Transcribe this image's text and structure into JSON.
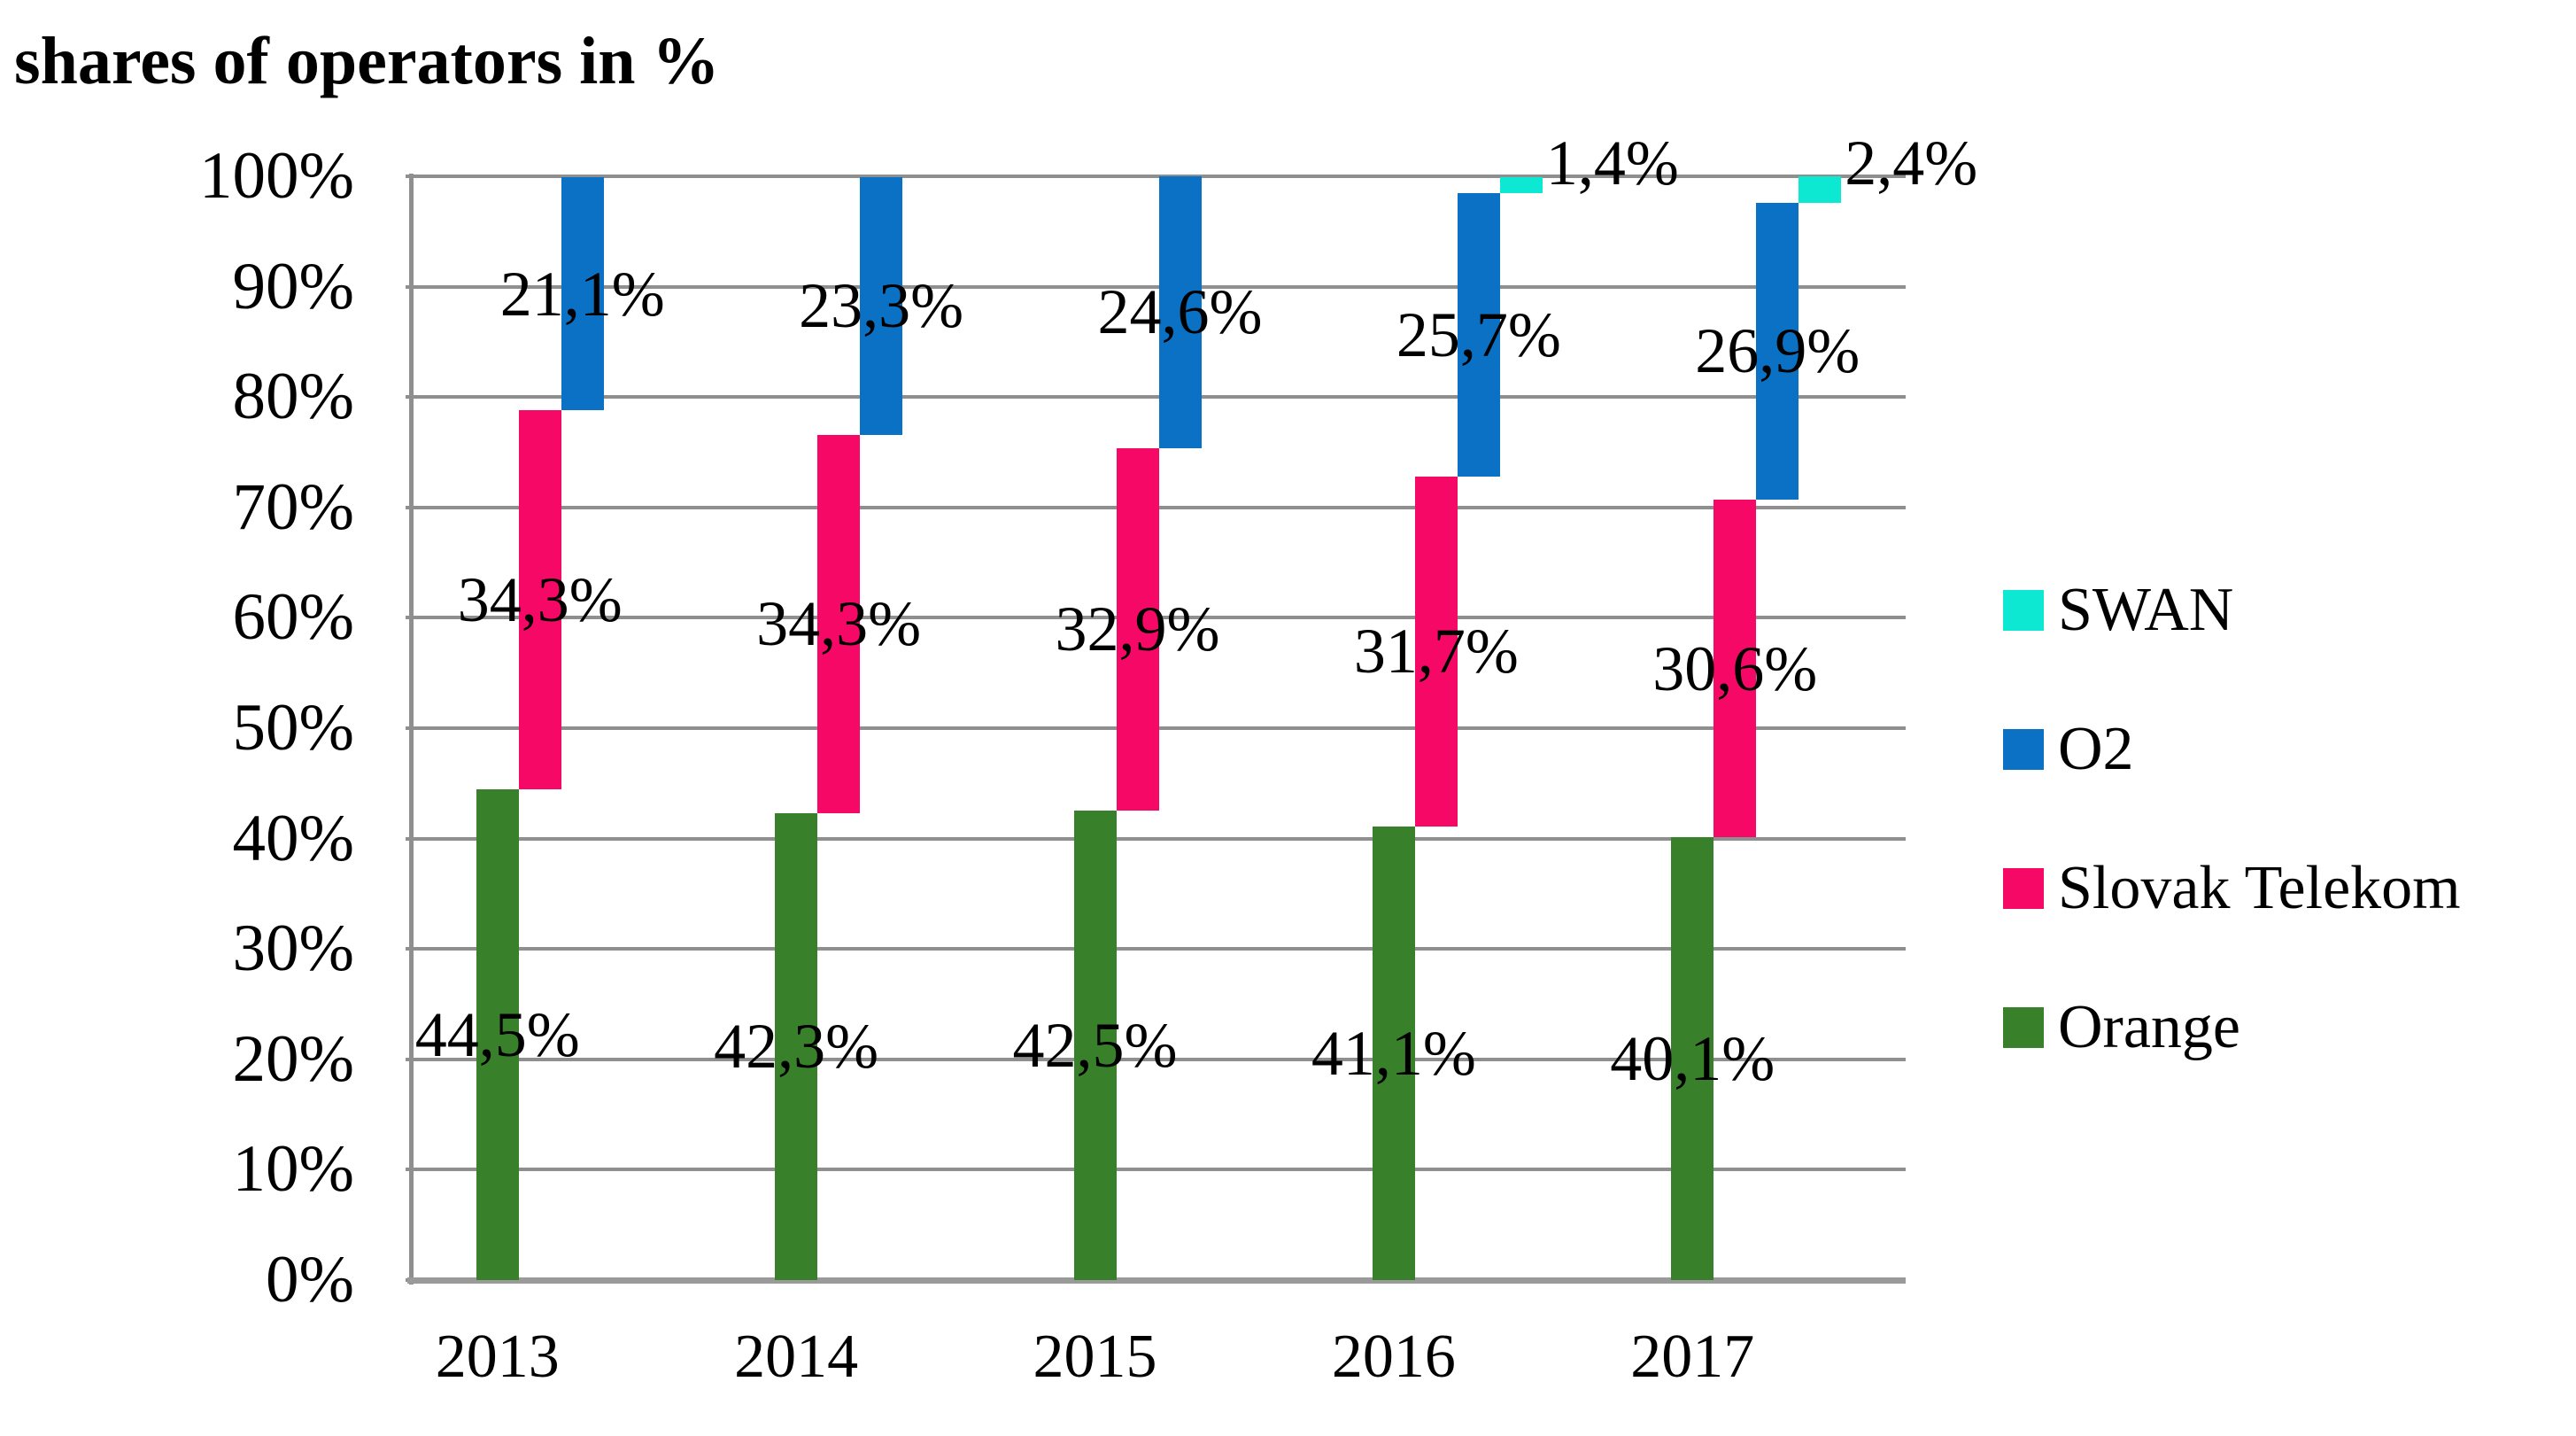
{
  "title": "shares of operators in %",
  "colors": {
    "swan": "#0ce8d2",
    "o2": "#0a71c4",
    "slovak_telekom": "#f60867",
    "orange": "#38812a",
    "gridline": "#8f8f8f",
    "axis": "#8f8f8f",
    "text": "#000000"
  },
  "y_axis": {
    "ticks": [
      "100%",
      "90%",
      "80%",
      "70%",
      "60%",
      "50%",
      "40%",
      "30%",
      "20%",
      "10%",
      "0%"
    ]
  },
  "legend": [
    {
      "label": "SWAN",
      "color": "#0ce8d2"
    },
    {
      "label": "O2",
      "color": "#0a71c4"
    },
    {
      "label": "Slovak Telekom",
      "color": "#f60867"
    },
    {
      "label": "Orange",
      "color": "#38812a"
    }
  ],
  "chart_data": {
    "type": "bar",
    "subtype": "stacked-staggered-columns",
    "title": "shares of operators in %",
    "categories": [
      "2013",
      "2014",
      "2015",
      "2016",
      "2017"
    ],
    "series": [
      {
        "name": "Orange",
        "color": "#38812a",
        "values": [
          44.5,
          42.3,
          42.5,
          41.1,
          40.1
        ],
        "labels": [
          "44,5%",
          "42,3%",
          "42,5%",
          "41,1%",
          "40,1%"
        ]
      },
      {
        "name": "Slovak Telekom",
        "color": "#f60867",
        "values": [
          34.3,
          34.3,
          32.9,
          31.7,
          30.6
        ],
        "labels": [
          "34,3%",
          "34,3%",
          "32,9%",
          "31,7%",
          "30,6%"
        ]
      },
      {
        "name": "O2",
        "color": "#0a71c4",
        "values": [
          21.1,
          23.3,
          24.6,
          25.7,
          26.9
        ],
        "labels": [
          "21,1%",
          "23,3%",
          "24,6%",
          "25,7%",
          "26,9%"
        ]
      },
      {
        "name": "SWAN",
        "color": "#0ce8d2",
        "values": [
          0,
          0,
          0,
          1.4,
          2.4
        ],
        "labels": [
          "",
          "",
          "",
          "1,4%",
          "2,4%"
        ]
      }
    ],
    "xlabel": "",
    "ylabel": "shares of operators in %",
    "ylim": [
      0,
      100
    ],
    "grid": true,
    "legend_position": "right"
  }
}
